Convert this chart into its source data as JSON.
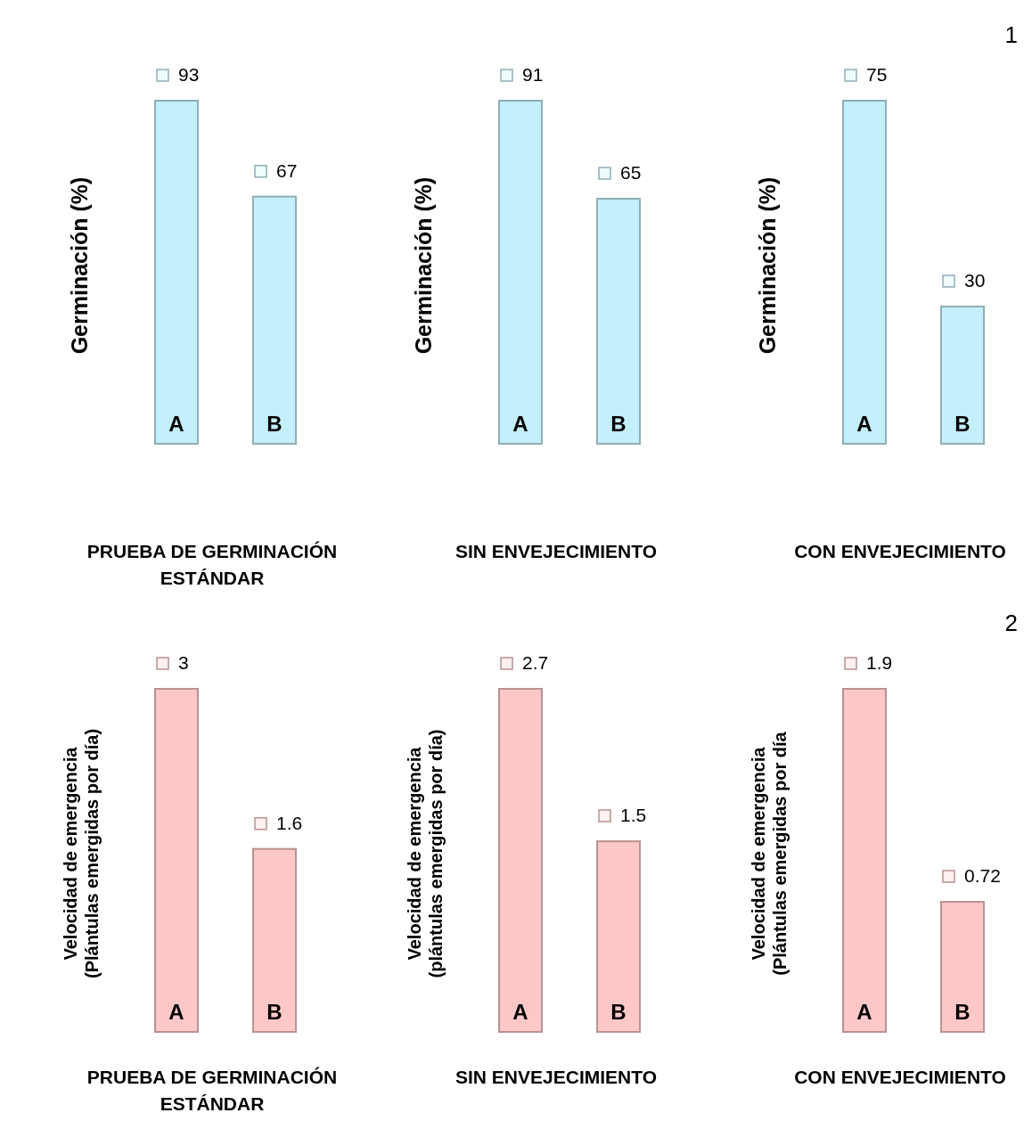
{
  "chart_data": [
    {
      "type": "bar",
      "categories": [
        null,
        null
      ],
      "values": [
        93,
        67
      ],
      "color": "#c4f0fb",
      "data_labels": true,
      "xlabel": "PRUEBA DE GERMINACIÓN ESTÁNDAR",
      "ylabel": "Germinación (%)",
      "annotations": [
        "A",
        "B"
      ]
    },
    {
      "type": "bar",
      "categories": [
        null,
        null
      ],
      "values": [
        91,
        65
      ],
      "color": "#c4f0fb",
      "data_labels": true,
      "xlabel": "SIN ENVEJECIMIENTO",
      "ylabel": "Germinación (%)",
      "annotations": [
        "A",
        "B"
      ]
    },
    {
      "type": "bar",
      "categories": [
        null,
        null
      ],
      "values": [
        75,
        30
      ],
      "color": "#c4f0fb",
      "data_labels": true,
      "xlabel": "CON ENVEJECIMIENTO",
      "ylabel": "Germinación (%)",
      "annotations": [
        "A",
        "B",
        "1"
      ]
    },
    {
      "type": "bar",
      "categories": [
        null,
        null
      ],
      "values": [
        3,
        1.6
      ],
      "color": "#ffc8c8",
      "data_labels": true,
      "xlabel": "PRUEBA DE GERMINACIÓN ESTÁNDAR",
      "ylabel": "Velocidad de emergencia (Plántulas emergidas por día)",
      "annotations": [
        "A",
        "B"
      ]
    },
    {
      "type": "bar",
      "categories": [
        null,
        null
      ],
      "values": [
        2.7,
        1.5
      ],
      "color": "#ffc8c8",
      "data_labels": true,
      "xlabel": "SIN ENVEJECIMIENTO",
      "ylabel": "Velocidad de emergencia (plántulas emergidas por día)",
      "annotations": [
        "A",
        "B"
      ]
    },
    {
      "type": "bar",
      "categories": [
        null,
        null
      ],
      "values": [
        1.9,
        0.72
      ],
      "color": "#ffc8c8",
      "data_labels": true,
      "xlabel": "CON ENVEJECIMIENTO",
      "ylabel": "Velocidad de emergencia (Plántulas emergidas por día",
      "annotations": [
        "A",
        "B",
        "2"
      ]
    }
  ]
}
